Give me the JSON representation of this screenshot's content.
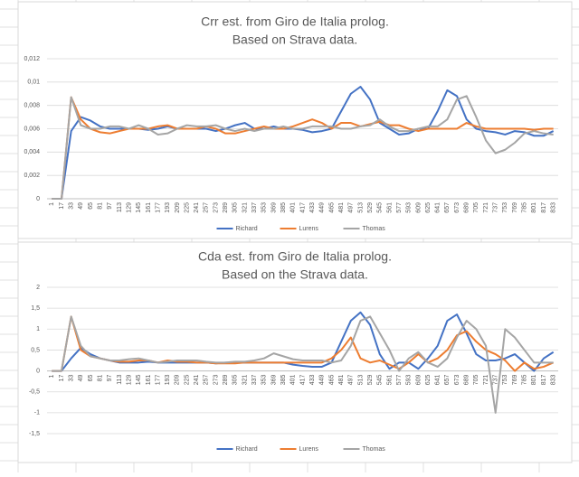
{
  "chart_data": [
    {
      "type": "line",
      "title": [
        "Crr est. from Giro de Italia prolog.",
        "Based on Strava data."
      ],
      "categories": [
        1,
        17,
        33,
        49,
        65,
        81,
        97,
        113,
        129,
        145,
        161,
        177,
        193,
        209,
        225,
        241,
        257,
        273,
        289,
        305,
        321,
        337,
        353,
        369,
        385,
        401,
        417,
        433,
        449,
        465,
        481,
        497,
        513,
        529,
        545,
        561,
        577,
        593,
        609,
        625,
        641,
        657,
        673,
        689,
        705,
        721,
        737,
        753,
        769,
        785,
        801,
        817,
        833
      ],
      "ylim": [
        0,
        0.012
      ],
      "yticks": [
        0,
        {
          "value": 0.002,
          "label": "0,002"
        },
        {
          "value": 0.004,
          "label": "0,004"
        },
        {
          "value": 0.006,
          "label": "0,006"
        },
        {
          "value": 0.008,
          "label": "0,008"
        },
        {
          "value": 0.01,
          "label": "0,01"
        },
        {
          "value": 0.012,
          "label": "0,012"
        }
      ],
      "grid": true,
      "legend": "bottom",
      "series": [
        {
          "name": "Richard",
          "color": "#4472c4",
          "values": [
            0,
            0,
            0.0058,
            0.007,
            0.0067,
            0.0062,
            0.006,
            0.006,
            0.006,
            0.006,
            0.0059,
            0.006,
            0.0062,
            0.006,
            0.006,
            0.006,
            0.006,
            0.0058,
            0.006,
            0.0063,
            0.0065,
            0.006,
            0.006,
            0.0062,
            0.006,
            0.006,
            0.0059,
            0.0057,
            0.0058,
            0.006,
            0.0075,
            0.009,
            0.0096,
            0.0085,
            0.0065,
            0.006,
            0.0055,
            0.0056,
            0.006,
            0.006,
            0.0075,
            0.0093,
            0.0088,
            0.0068,
            0.006,
            0.0058,
            0.0057,
            0.0055,
            0.0058,
            0.0057,
            0.0054,
            0.0054,
            0.0058
          ]
        },
        {
          "name": "Lurens",
          "color": "#ed7d31",
          "values": [
            0,
            0,
            0.0087,
            0.0068,
            0.006,
            0.0057,
            0.0056,
            0.0058,
            0.006,
            0.006,
            0.006,
            0.0062,
            0.0063,
            0.006,
            0.006,
            0.006,
            0.0062,
            0.006,
            0.0056,
            0.0056,
            0.0058,
            0.006,
            0.0062,
            0.006,
            0.006,
            0.0062,
            0.0065,
            0.0068,
            0.0065,
            0.006,
            0.0065,
            0.0065,
            0.0062,
            0.0064,
            0.0066,
            0.0063,
            0.0063,
            0.006,
            0.0058,
            0.006,
            0.006,
            0.006,
            0.006,
            0.0065,
            0.0062,
            0.006,
            0.006,
            0.006,
            0.006,
            0.006,
            0.0059,
            0.006,
            0.006
          ]
        },
        {
          "name": "Thomas",
          "color": "#a5a5a5",
          "values": [
            0,
            0,
            0.0087,
            0.0063,
            0.006,
            0.006,
            0.0062,
            0.0062,
            0.006,
            0.0063,
            0.006,
            0.0055,
            0.0056,
            0.006,
            0.0063,
            0.0062,
            0.0062,
            0.0063,
            0.006,
            0.0058,
            0.006,
            0.0058,
            0.006,
            0.006,
            0.0062,
            0.006,
            0.006,
            0.0062,
            0.0062,
            0.0062,
            0.006,
            0.006,
            0.0062,
            0.0063,
            0.0068,
            0.0062,
            0.0058,
            0.0058,
            0.006,
            0.0062,
            0.0062,
            0.0068,
            0.0085,
            0.0088,
            0.007,
            0.005,
            0.0039,
            0.0042,
            0.0048,
            0.0056,
            0.0058,
            0.0056,
            0.0055
          ]
        }
      ]
    },
    {
      "type": "line",
      "title": [
        "Cda est. from Giro de Italia prolog.",
        "Based on the Strava data."
      ],
      "categories": [
        1,
        17,
        33,
        49,
        65,
        81,
        97,
        113,
        129,
        145,
        161,
        177,
        193,
        209,
        225,
        241,
        257,
        273,
        289,
        305,
        321,
        337,
        353,
        369,
        385,
        401,
        417,
        433,
        449,
        465,
        481,
        497,
        513,
        529,
        545,
        561,
        577,
        593,
        609,
        625,
        641,
        657,
        673,
        689,
        705,
        721,
        737,
        753,
        769,
        785,
        801,
        817,
        833
      ],
      "ylim": [
        -1.5,
        2
      ],
      "yticks": [
        {
          "value": -1.5,
          "label": "-1,5"
        },
        -1,
        {
          "value": -0.5,
          "label": "-0,5"
        },
        0,
        {
          "value": 0.5,
          "label": "0,5"
        },
        1,
        {
          "value": 1.5,
          "label": "1,5"
        },
        2
      ],
      "grid": true,
      "legend": "bottom",
      "series": [
        {
          "name": "Richard",
          "color": "#4472c4",
          "values": [
            0,
            0,
            0.3,
            0.55,
            0.4,
            0.3,
            0.25,
            0.2,
            0.2,
            0.2,
            0.22,
            0.2,
            0.2,
            0.2,
            0.2,
            0.2,
            0.2,
            0.18,
            0.2,
            0.2,
            0.2,
            0.2,
            0.2,
            0.2,
            0.2,
            0.15,
            0.12,
            0.1,
            0.1,
            0.2,
            0.7,
            1.2,
            1.4,
            1.1,
            0.4,
            0.05,
            0.2,
            0.2,
            0.05,
            0.3,
            0.6,
            1.2,
            1.35,
            0.9,
            0.4,
            0.25,
            0.25,
            0.3,
            0.4,
            0.2,
            0,
            0.3,
            0.45
          ]
        },
        {
          "name": "Lurens",
          "color": "#ed7d31",
          "values": [
            0,
            0,
            1.3,
            0.5,
            0.35,
            0.3,
            0.25,
            0.22,
            0.22,
            0.25,
            0.25,
            0.2,
            0.25,
            0.22,
            0.22,
            0.2,
            0.2,
            0.18,
            0.18,
            0.18,
            0.2,
            0.2,
            0.2,
            0.2,
            0.2,
            0.2,
            0.2,
            0.2,
            0.2,
            0.3,
            0.5,
            0.8,
            0.3,
            0.2,
            0.25,
            0.15,
            0.05,
            0.2,
            0.4,
            0.2,
            0.3,
            0.5,
            0.85,
            0.95,
            0.7,
            0.5,
            0.4,
            0.25,
            0,
            0.2,
            0.05,
            0.1,
            0.2
          ]
        },
        {
          "name": "Thomas",
          "color": "#a5a5a5",
          "values": [
            0,
            0,
            1.3,
            0.6,
            0.35,
            0.3,
            0.25,
            0.25,
            0.28,
            0.3,
            0.25,
            0.2,
            0.22,
            0.25,
            0.25,
            0.25,
            0.22,
            0.2,
            0.2,
            0.22,
            0.22,
            0.25,
            0.3,
            0.42,
            0.35,
            0.28,
            0.25,
            0.25,
            0.25,
            0.2,
            0.25,
            0.6,
            1.2,
            1.3,
            0.9,
            0.5,
            0,
            0.3,
            0.45,
            0.2,
            0.1,
            0.3,
            0.8,
            1.2,
            1.0,
            0.6,
            -1.0,
            1.0,
            0.8,
            0.5,
            0.2,
            0.2,
            0.2
          ]
        }
      ]
    }
  ]
}
